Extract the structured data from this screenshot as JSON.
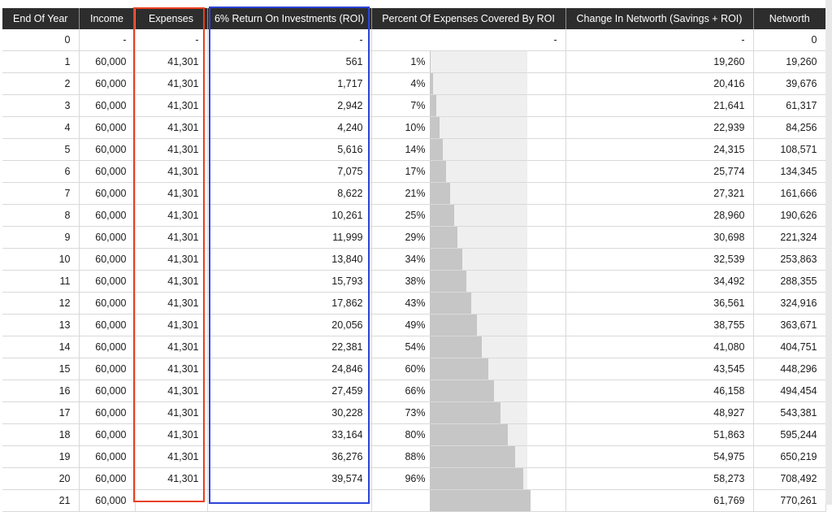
{
  "table": {
    "columns": [
      {
        "key": "year",
        "label": "End Of Year"
      },
      {
        "key": "income",
        "label": "Income"
      },
      {
        "key": "expenses",
        "label": "Expenses"
      },
      {
        "key": "roi",
        "label": "6% Return On Investments (ROI)"
      },
      {
        "key": "pct",
        "label": "Percent Of Expenses Covered By ROI"
      },
      {
        "key": "change",
        "label": "Change In Networth (Savings + ROI)"
      },
      {
        "key": "networth",
        "label": "Networth"
      }
    ],
    "rows": [
      {
        "year": "0",
        "income": "-",
        "expenses": "-",
        "roi": "-",
        "pct": "-",
        "pct_bar": null,
        "change": "-",
        "networth": "0"
      },
      {
        "year": "1",
        "income": "60,000",
        "expenses": "41,301",
        "roi": "561",
        "pct": "1%",
        "pct_bar": 1,
        "change": "19,260",
        "networth": "19,260"
      },
      {
        "year": "2",
        "income": "60,000",
        "expenses": "41,301",
        "roi": "1,717",
        "pct": "4%",
        "pct_bar": 4,
        "change": "20,416",
        "networth": "39,676"
      },
      {
        "year": "3",
        "income": "60,000",
        "expenses": "41,301",
        "roi": "2,942",
        "pct": "7%",
        "pct_bar": 7,
        "change": "21,641",
        "networth": "61,317"
      },
      {
        "year": "4",
        "income": "60,000",
        "expenses": "41,301",
        "roi": "4,240",
        "pct": "10%",
        "pct_bar": 10,
        "change": "22,939",
        "networth": "84,256"
      },
      {
        "year": "5",
        "income": "60,000",
        "expenses": "41,301",
        "roi": "5,616",
        "pct": "14%",
        "pct_bar": 14,
        "change": "24,315",
        "networth": "108,571"
      },
      {
        "year": "6",
        "income": "60,000",
        "expenses": "41,301",
        "roi": "7,075",
        "pct": "17%",
        "pct_bar": 17,
        "change": "25,774",
        "networth": "134,345"
      },
      {
        "year": "7",
        "income": "60,000",
        "expenses": "41,301",
        "roi": "8,622",
        "pct": "21%",
        "pct_bar": 21,
        "change": "27,321",
        "networth": "161,666"
      },
      {
        "year": "8",
        "income": "60,000",
        "expenses": "41,301",
        "roi": "10,261",
        "pct": "25%",
        "pct_bar": 25,
        "change": "28,960",
        "networth": "190,626"
      },
      {
        "year": "9",
        "income": "60,000",
        "expenses": "41,301",
        "roi": "11,999",
        "pct": "29%",
        "pct_bar": 29,
        "change": "30,698",
        "networth": "221,324"
      },
      {
        "year": "10",
        "income": "60,000",
        "expenses": "41,301",
        "roi": "13,840",
        "pct": "34%",
        "pct_bar": 34,
        "change": "32,539",
        "networth": "253,863"
      },
      {
        "year": "11",
        "income": "60,000",
        "expenses": "41,301",
        "roi": "15,793",
        "pct": "38%",
        "pct_bar": 38,
        "change": "34,492",
        "networth": "288,355"
      },
      {
        "year": "12",
        "income": "60,000",
        "expenses": "41,301",
        "roi": "17,862",
        "pct": "43%",
        "pct_bar": 43,
        "change": "36,561",
        "networth": "324,916"
      },
      {
        "year": "13",
        "income": "60,000",
        "expenses": "41,301",
        "roi": "20,056",
        "pct": "49%",
        "pct_bar": 49,
        "change": "38,755",
        "networth": "363,671"
      },
      {
        "year": "14",
        "income": "60,000",
        "expenses": "41,301",
        "roi": "22,381",
        "pct": "54%",
        "pct_bar": 54,
        "change": "41,080",
        "networth": "404,751"
      },
      {
        "year": "15",
        "income": "60,000",
        "expenses": "41,301",
        "roi": "24,846",
        "pct": "60%",
        "pct_bar": 60,
        "change": "43,545",
        "networth": "448,296"
      },
      {
        "year": "16",
        "income": "60,000",
        "expenses": "41,301",
        "roi": "27,459",
        "pct": "66%",
        "pct_bar": 66,
        "change": "46,158",
        "networth": "494,454"
      },
      {
        "year": "17",
        "income": "60,000",
        "expenses": "41,301",
        "roi": "30,228",
        "pct": "73%",
        "pct_bar": 73,
        "change": "48,927",
        "networth": "543,381"
      },
      {
        "year": "18",
        "income": "60,000",
        "expenses": "41,301",
        "roi": "33,164",
        "pct": "80%",
        "pct_bar": 80,
        "change": "51,863",
        "networth": "595,244"
      },
      {
        "year": "19",
        "income": "60,000",
        "expenses": "41,301",
        "roi": "36,276",
        "pct": "88%",
        "pct_bar": 88,
        "change": "54,975",
        "networth": "650,219"
      },
      {
        "year": "20",
        "income": "60,000",
        "expenses": "41,301",
        "roi": "39,574",
        "pct": "96%",
        "pct_bar": 96,
        "change": "58,273",
        "networth": "708,492"
      },
      {
        "year": "21",
        "income": "60,000",
        "expenses": "",
        "roi": "",
        "pct": "",
        "pct_bar": 104,
        "change": "61,769",
        "networth": "770,261"
      }
    ]
  },
  "annotations": {
    "red_box": {
      "highlights_column": "Expenses",
      "color": "#e8401f"
    },
    "blue_box": {
      "highlights_column": "6% Return On Investments (ROI)",
      "color": "#2b44d8"
    }
  },
  "colors": {
    "header_bg": "#2d2d2d",
    "header_text": "#ffffff",
    "bar_bg": "#efefef",
    "bar_fill": "#c6c6c6",
    "row_border": "#d9d9d9",
    "page_margin": "#e8e8e8"
  }
}
